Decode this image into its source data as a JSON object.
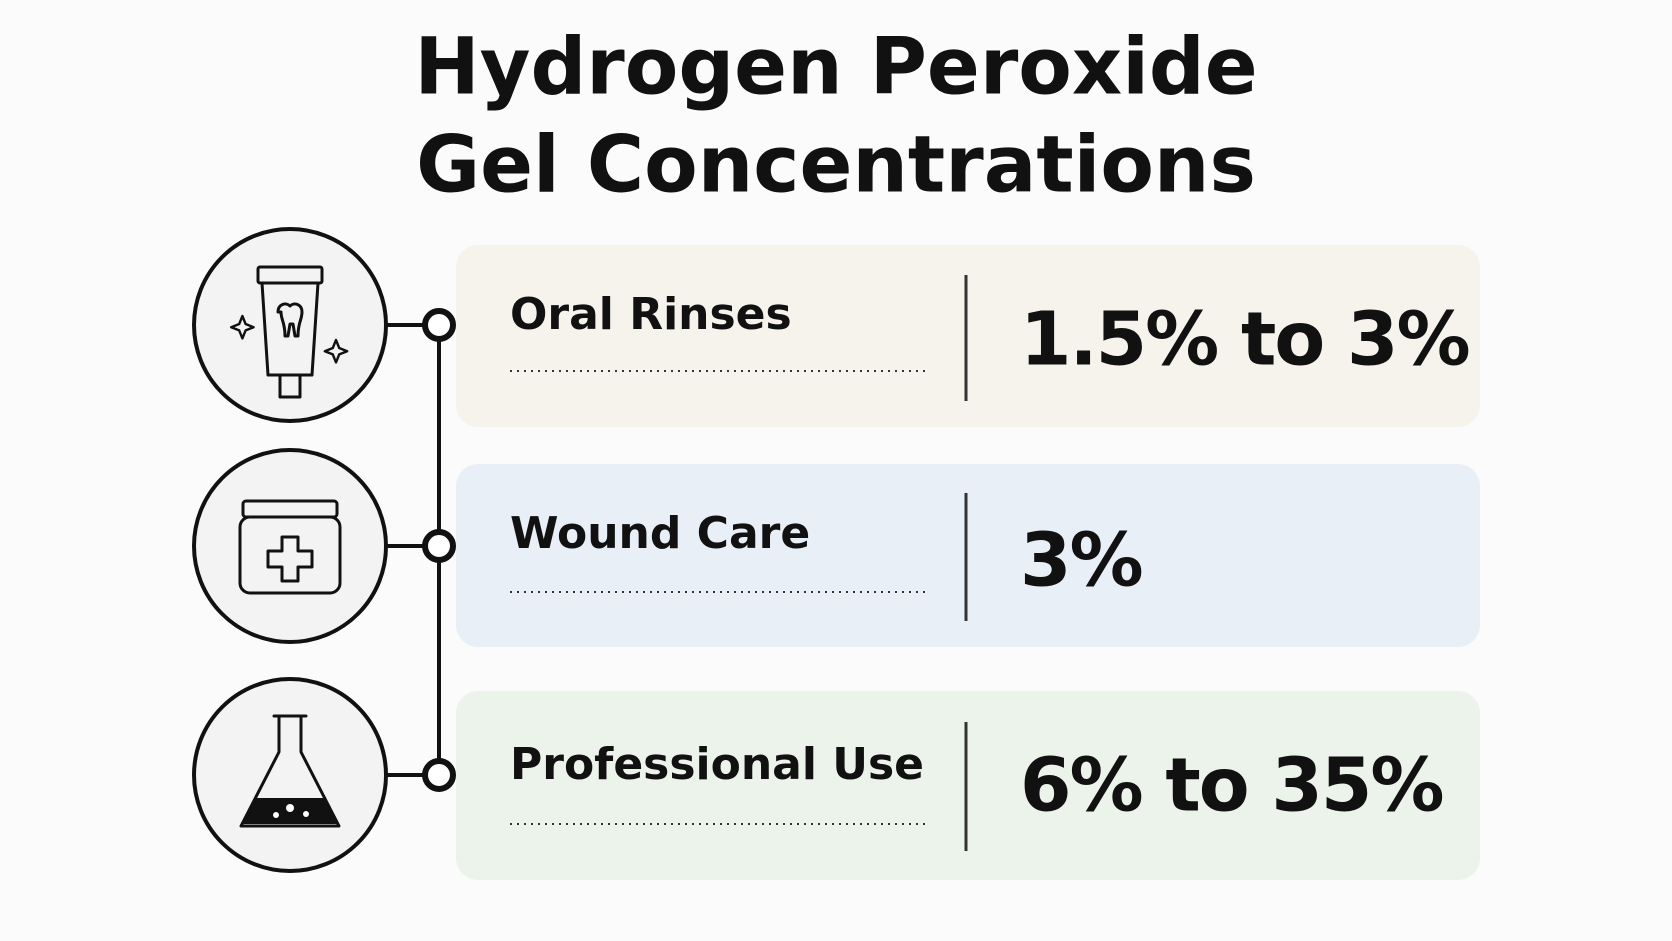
{
  "title": {
    "lines": [
      "Hydrogen Peroxide",
      "Gel Concentrations"
    ]
  },
  "rows": [
    {
      "label": "Oral Rinses",
      "value": "1.5% to 3%"
    },
    {
      "label": "Wound Care",
      "value": "3%"
    },
    {
      "label": "Professional Use",
      "value": "6% to 35%"
    }
  ]
}
